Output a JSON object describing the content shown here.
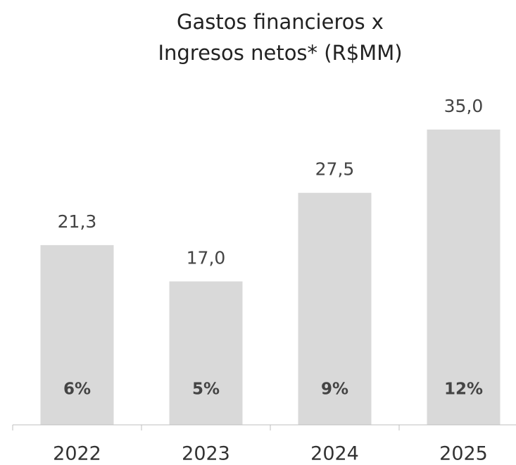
{
  "chart_data": {
    "type": "bar",
    "title": [
      "Gastos financieros x",
      "Ingresos netos* (R$MM)"
    ],
    "categories": [
      "2022",
      "2023",
      "2024",
      "2025"
    ],
    "values": [
      21.3,
      17.0,
      27.5,
      35.0
    ],
    "value_labels": [
      "21,3",
      "17,0",
      "27,5",
      "35,0"
    ],
    "ratio_labels": [
      "6%",
      "5%",
      "9%",
      "12%"
    ],
    "color": "#d9d9d9",
    "ylim": [
      0,
      40
    ]
  }
}
